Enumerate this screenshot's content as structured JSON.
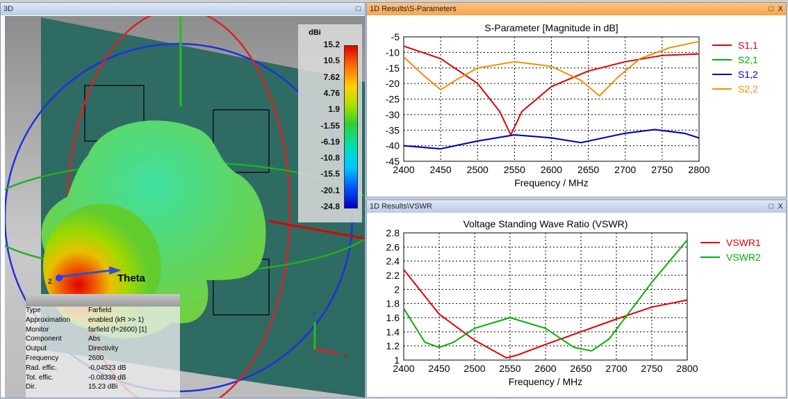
{
  "view3d": {
    "title": "3D",
    "axis_label": "Theta",
    "axis_z": "z",
    "axis_y": "y",
    "axis_x": "x",
    "colorbar": {
      "unit": "dBi",
      "labels": [
        "15.2",
        "10.5",
        "7.62",
        "4.76",
        "1.9",
        "-1.55",
        "-6.19",
        "-10.8",
        "-15.5",
        "-20.1",
        "-24.8"
      ]
    },
    "info": [
      [
        "Type",
        "Farfield"
      ],
      [
        "Approximation",
        "enabled (kR >> 1)"
      ],
      [
        "Monitor",
        "farfield (f=2600) [1]"
      ],
      [
        "Component",
        "Abs"
      ],
      [
        "Output",
        "Directivity"
      ],
      [
        "Frequency",
        "2600"
      ],
      [
        "Rad. effic.",
        "-0.04523 dB"
      ],
      [
        "Tot. effic.",
        "-0.08339 dB"
      ],
      [
        "Dir.",
        "15.23 dBi"
      ]
    ]
  },
  "sparam_panel": {
    "title": "1D Results\\S-Parameters",
    "max": "□",
    "close": "X"
  },
  "vswr_panel": {
    "title": "1D Results\\VSWR",
    "max": "□",
    "close": "X"
  },
  "chart_data": [
    {
      "type": "line",
      "title": "S-Parameter [Magnitude in dB]",
      "xlabel": "Frequency / MHz",
      "ylabel": "",
      "xlim": [
        2400,
        2800
      ],
      "ylim": [
        -45,
        -5
      ],
      "xticks": [
        2400,
        2450,
        2500,
        2550,
        2600,
        2650,
        2700,
        2750,
        2800
      ],
      "yticks": [
        -5,
        -10,
        -15,
        -20,
        -25,
        -30,
        -35,
        -40,
        -45
      ],
      "grid": true,
      "legend": "right",
      "series": [
        {
          "name": "S1,1",
          "color": "#e00000",
          "x": [
            2400,
            2450,
            2500,
            2530,
            2545,
            2560,
            2600,
            2650,
            2700,
            2750,
            2800
          ],
          "y": [
            -8,
            -12,
            -20,
            -29,
            -36.5,
            -29,
            -21,
            -16,
            -13,
            -11,
            -10.5
          ]
        },
        {
          "name": "S2,1",
          "color": "#00b000",
          "x": [
            2400,
            2450,
            2500,
            2550,
            2600,
            2640,
            2700,
            2740,
            2780,
            2800
          ],
          "y": [
            -40,
            -41,
            -38.5,
            -36.5,
            -37.5,
            -39,
            -36,
            -34.8,
            -36,
            -37.5
          ]
        },
        {
          "name": "S1,2",
          "color": "#0000c0",
          "x": [
            2400,
            2450,
            2500,
            2550,
            2600,
            2640,
            2700,
            2740,
            2780,
            2800
          ],
          "y": [
            -40,
            -41,
            -38.5,
            -36.5,
            -37.5,
            -39,
            -36,
            -34.8,
            -36,
            -37.5
          ]
        },
        {
          "name": "S2,2",
          "color": "#f09000",
          "x": [
            2400,
            2430,
            2450,
            2470,
            2500,
            2550,
            2600,
            2640,
            2665,
            2690,
            2720,
            2760,
            2800
          ],
          "y": [
            -11.5,
            -18,
            -22,
            -19,
            -15,
            -13,
            -14.5,
            -19,
            -24,
            -18,
            -12,
            -8.5,
            -6.5
          ]
        }
      ]
    },
    {
      "type": "line",
      "title": "Voltage Standing Wave Ratio (VSWR)",
      "xlabel": "Frequency / MHz",
      "ylabel": "",
      "xlim": [
        2400,
        2800
      ],
      "ylim": [
        1,
        2.8
      ],
      "xticks": [
        2400,
        2450,
        2500,
        2550,
        2600,
        2650,
        2700,
        2750,
        2800
      ],
      "yticks": [
        2.8,
        2.6,
        2.4,
        2.2,
        2,
        1.8,
        1.6,
        1.4,
        1.2,
        1
      ],
      "grid": true,
      "legend": "right",
      "series": [
        {
          "name": "VSWR1",
          "color": "#e00000",
          "x": [
            2400,
            2450,
            2500,
            2545,
            2560,
            2600,
            2650,
            2700,
            2750,
            2800
          ],
          "y": [
            2.28,
            1.65,
            1.28,
            1.03,
            1.07,
            1.22,
            1.4,
            1.58,
            1.75,
            1.85
          ]
        },
        {
          "name": "VSWR2",
          "color": "#00b000",
          "x": [
            2400,
            2430,
            2450,
            2470,
            2500,
            2550,
            2600,
            2640,
            2665,
            2690,
            2720,
            2750,
            2800
          ],
          "y": [
            1.73,
            1.25,
            1.18,
            1.25,
            1.45,
            1.6,
            1.45,
            1.18,
            1.13,
            1.3,
            1.7,
            2.1,
            2.7
          ]
        }
      ]
    }
  ]
}
